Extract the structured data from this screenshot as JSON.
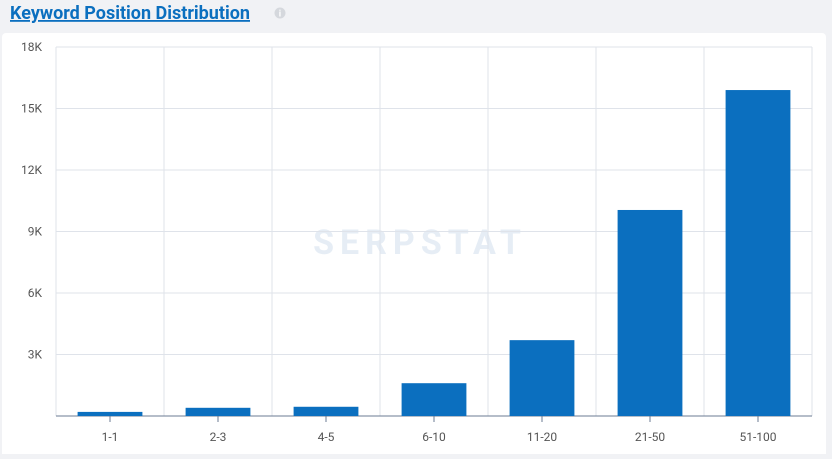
{
  "chart_data": {
    "type": "bar",
    "title": "Keyword Position Distribution",
    "watermark": "SERPSTAT",
    "categories": [
      "1-1",
      "2-3",
      "4-5",
      "6-10",
      "11-20",
      "21-50",
      "51-100"
    ],
    "values": [
      200,
      400,
      450,
      1600,
      3700,
      10050,
      15900
    ],
    "color": "#0b6fbf",
    "ylim": [
      0,
      18000
    ],
    "yticks": [
      {
        "value": 3000,
        "label": "3K"
      },
      {
        "value": 6000,
        "label": "6K"
      },
      {
        "value": 9000,
        "label": "9K"
      },
      {
        "value": 12000,
        "label": "12K"
      },
      {
        "value": 15000,
        "label": "15K"
      },
      {
        "value": 18000,
        "label": "18K"
      }
    ],
    "grid": true
  }
}
